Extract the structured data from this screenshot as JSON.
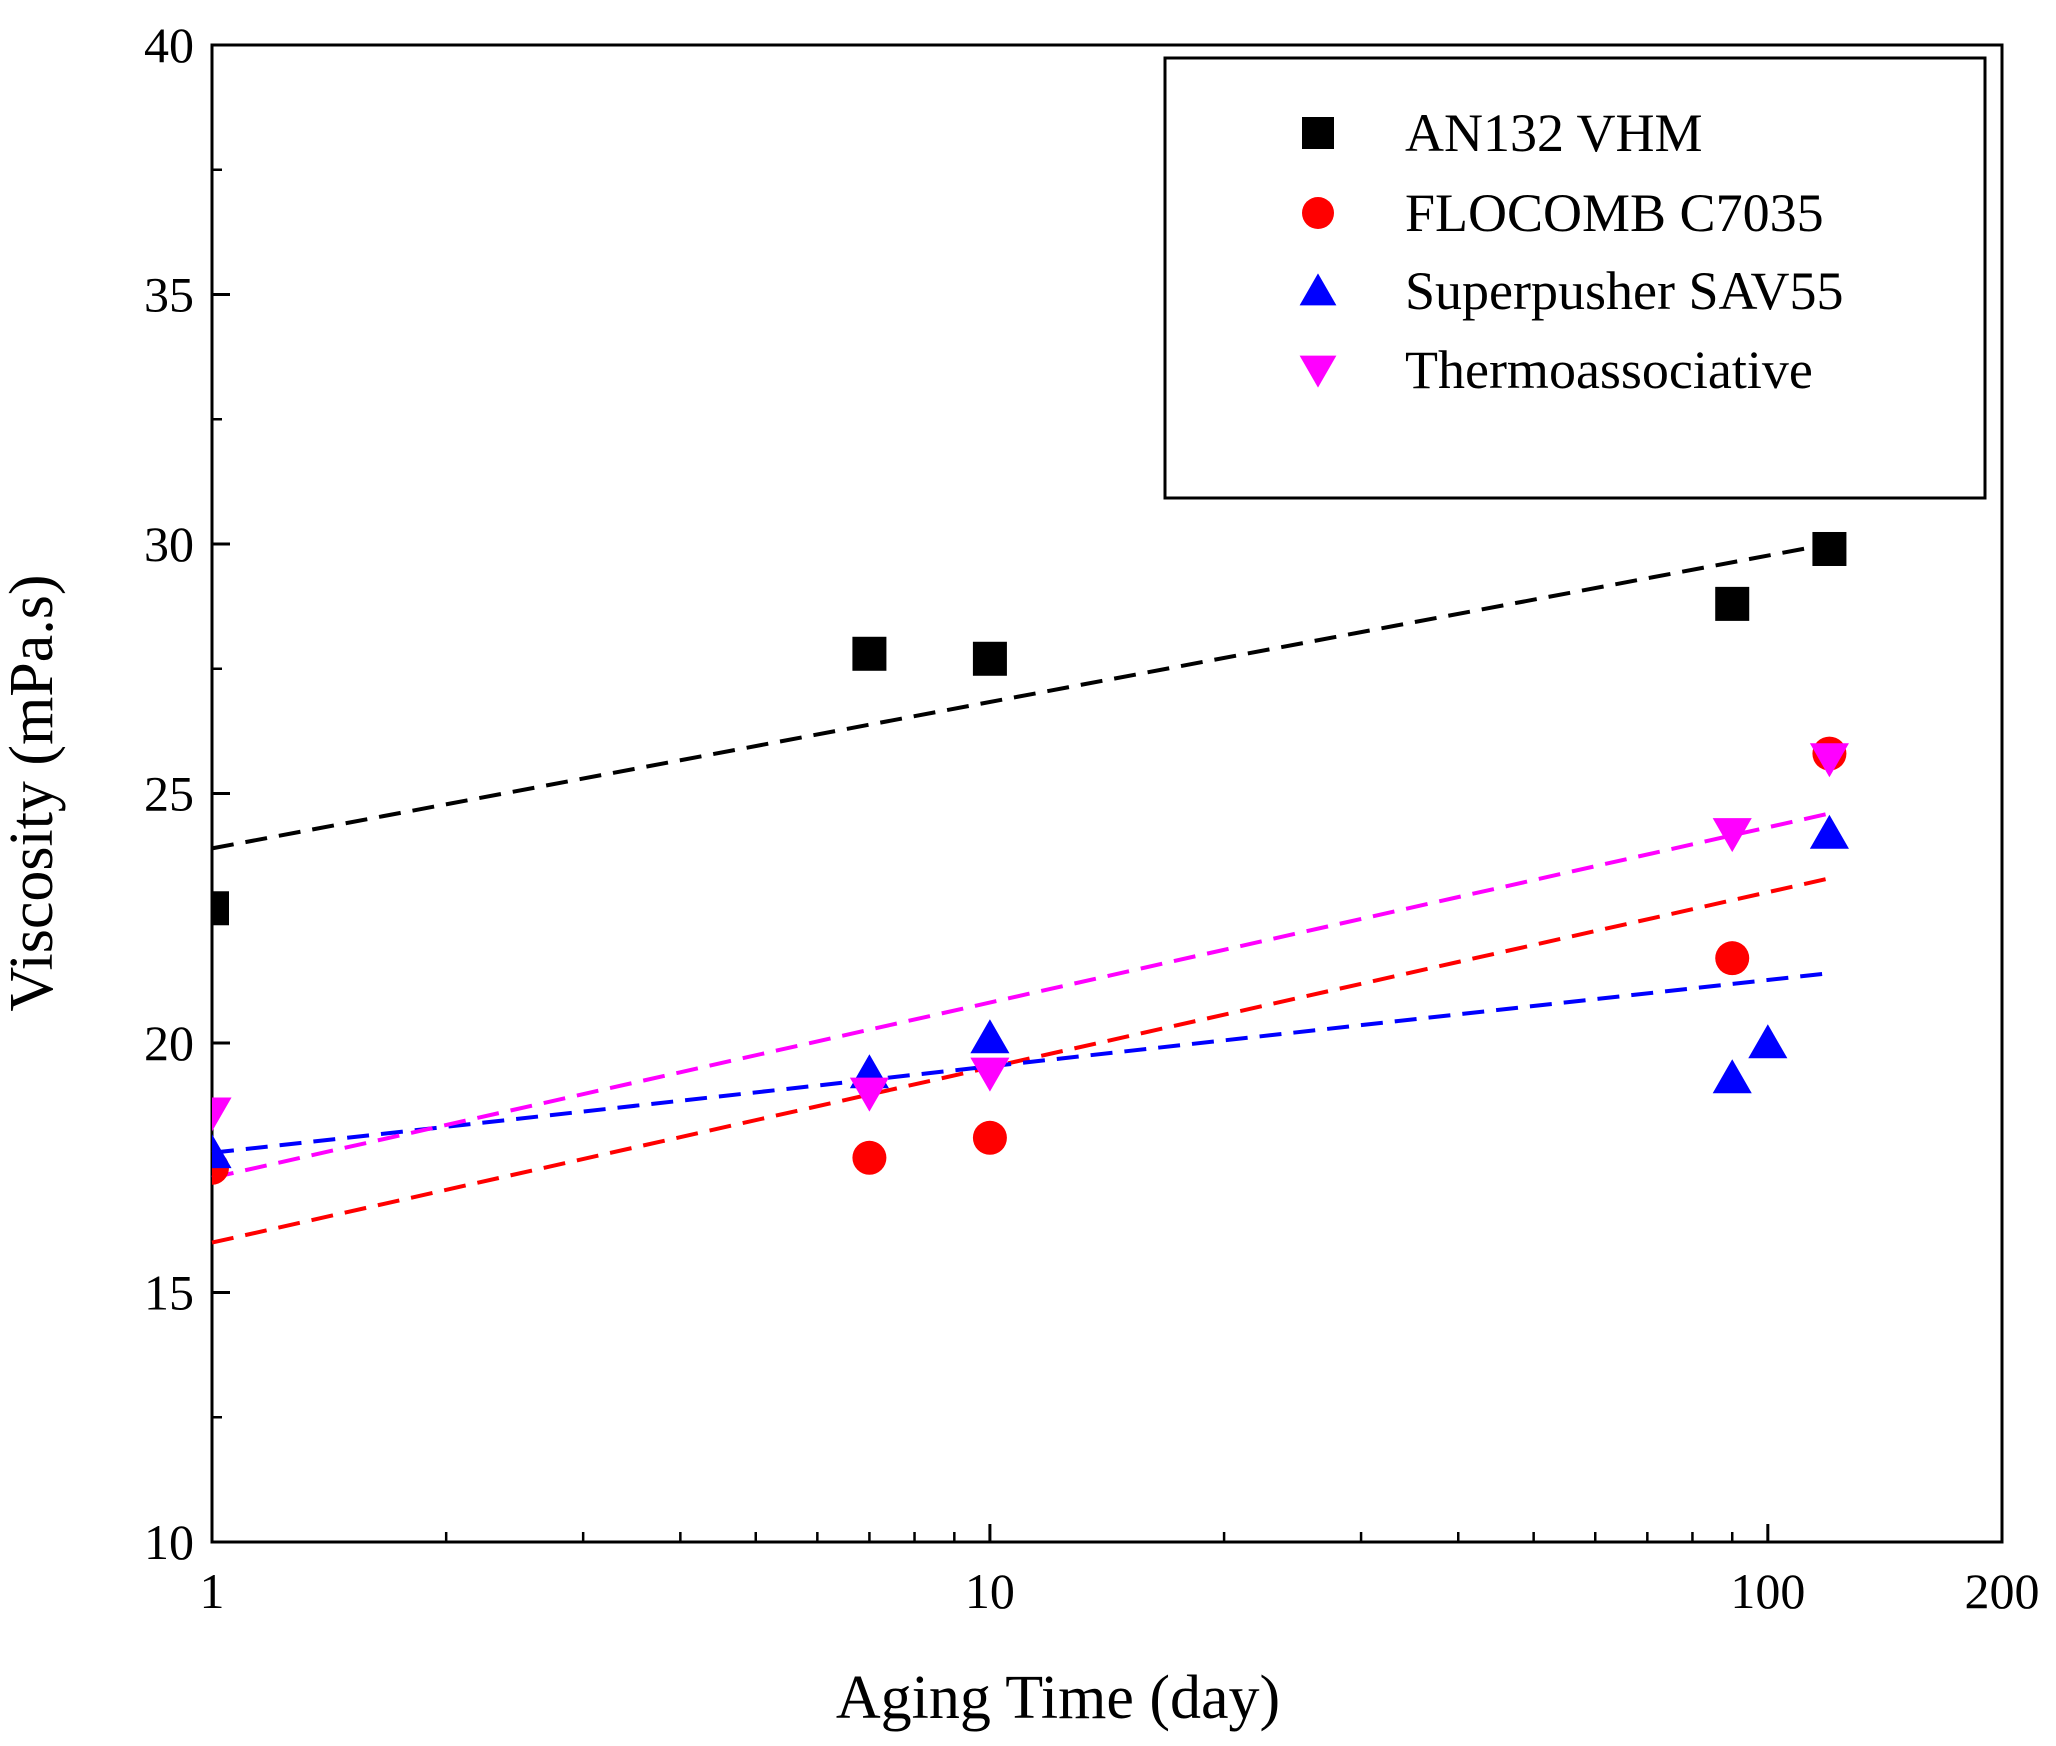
{
  "chart_data": {
    "type": "scatter",
    "title": "",
    "xlabel": "Aging Time (day)",
    "ylabel": "Viscosity (mPa.s)",
    "x_scale": "log",
    "xlim": [
      1,
      200
    ],
    "ylim": [
      10,
      40
    ],
    "x_ticks": [
      {
        "value": 1,
        "label": "1"
      },
      {
        "value": 10,
        "label": "10"
      },
      {
        "value": 100,
        "label": "100"
      },
      {
        "value": 200,
        "label": "200"
      }
    ],
    "x_minor_ticks": [
      2,
      3,
      4,
      5,
      6,
      7,
      8,
      9,
      20,
      30,
      40,
      50,
      60,
      70,
      80,
      90
    ],
    "y_ticks": [
      {
        "value": 10,
        "label": "10"
      },
      {
        "value": 15,
        "label": "15"
      },
      {
        "value": 20,
        "label": "20"
      },
      {
        "value": 25,
        "label": "25"
      },
      {
        "value": 30,
        "label": "30"
      },
      {
        "value": 35,
        "label": "35"
      },
      {
        "value": 40,
        "label": "40"
      }
    ],
    "y_minor_ticks": [
      12.5,
      17.5,
      22.5,
      27.5,
      32.5,
      37.5
    ],
    "grid": false,
    "legend_position": "top-right",
    "series": [
      {
        "name": "AN132 VHM",
        "marker": "square",
        "color": "#000000",
        "points": [
          [
            1,
            22.7
          ],
          [
            7,
            27.8
          ],
          [
            10,
            27.7
          ],
          [
            90,
            28.8
          ],
          [
            120,
            29.9
          ]
        ],
        "fit": {
          "from": [
            1,
            23.9
          ],
          "to": [
            120,
            30.0
          ]
        }
      },
      {
        "name": "FLOCOMB C7035",
        "marker": "circle",
        "color": "#ff0000",
        "points": [
          [
            1,
            17.5
          ],
          [
            7,
            17.7
          ],
          [
            10,
            18.1
          ],
          [
            90,
            21.7
          ],
          [
            120,
            25.8
          ]
        ],
        "fit": {
          "from": [
            1,
            16.0
          ],
          "to": [
            120,
            23.3
          ]
        }
      },
      {
        "name": "Superpusher SAV55",
        "marker": "triangle-up",
        "color": "#0000ff",
        "points": [
          [
            1,
            17.8
          ],
          [
            7,
            19.4
          ],
          [
            10,
            20.1
          ],
          [
            90,
            19.3
          ],
          [
            100,
            20.0
          ],
          [
            120,
            24.2
          ]
        ],
        "fit": {
          "from": [
            1,
            17.8
          ],
          "to": [
            120,
            21.4
          ]
        }
      },
      {
        "name": "Thermoassociative",
        "marker": "triangle-down",
        "color": "#ff00ff",
        "points": [
          [
            1,
            18.6
          ],
          [
            7,
            19.0
          ],
          [
            10,
            19.4
          ],
          [
            90,
            24.2
          ],
          [
            120,
            25.7
          ]
        ],
        "fit": {
          "from": [
            1,
            17.3
          ],
          "to": [
            120,
            24.6
          ]
        }
      }
    ]
  }
}
